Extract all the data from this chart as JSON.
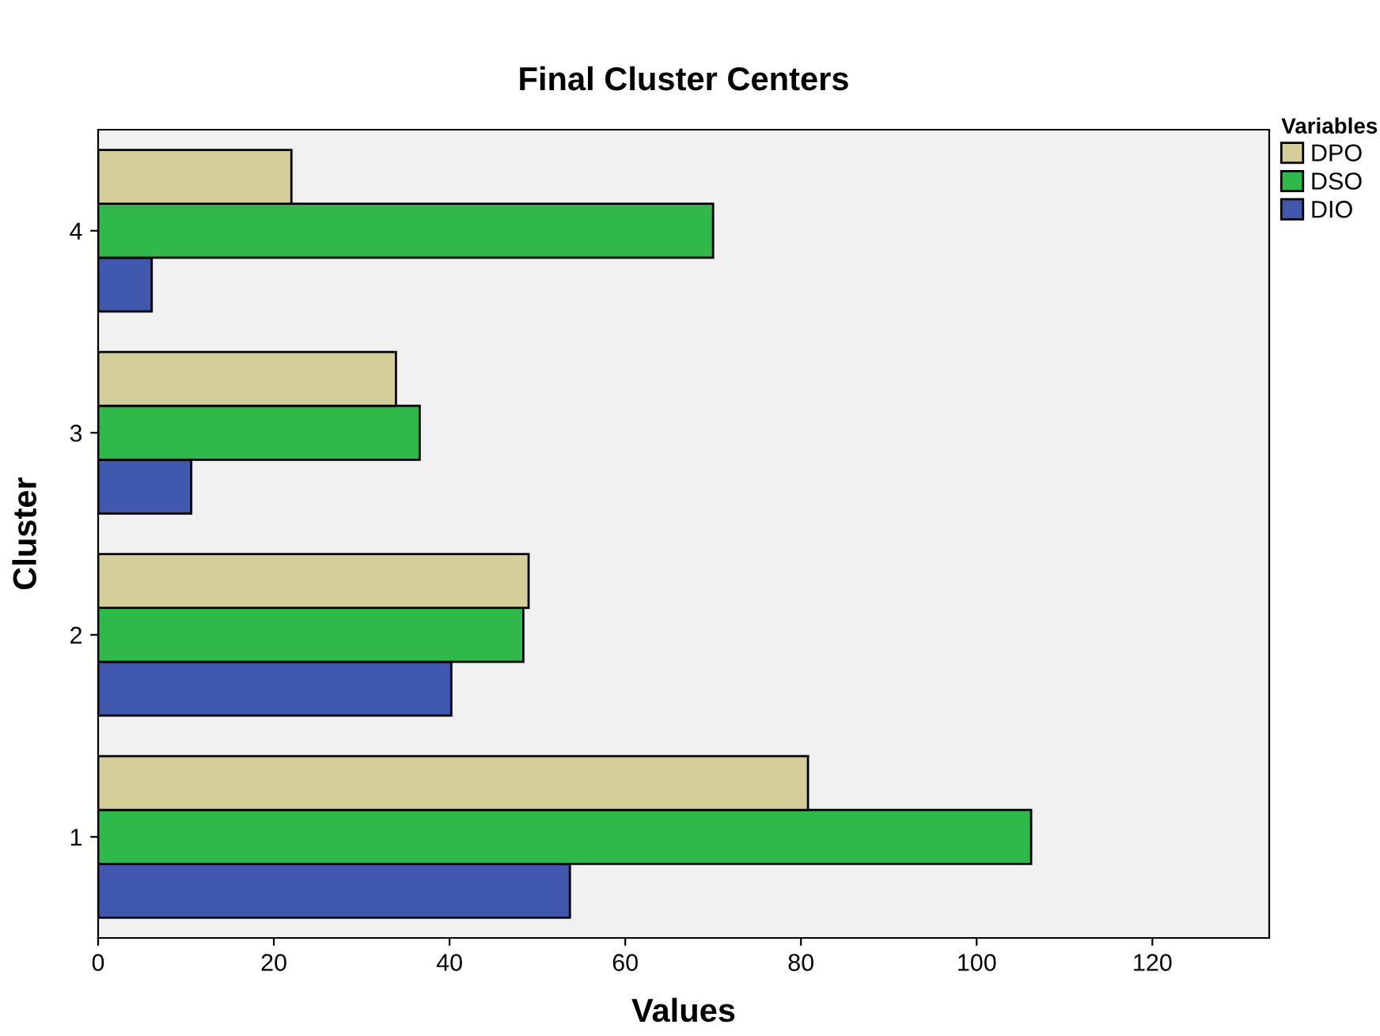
{
  "chart_data": {
    "type": "bar",
    "orientation": "horizontal",
    "title": "Final Cluster Centers",
    "xlabel": "Values",
    "ylabel": "Cluster",
    "legend_title": "Variables",
    "legend": "top right",
    "categories": [
      "4",
      "3",
      "2",
      "1"
    ],
    "series": [
      {
        "name": "DIO",
        "color": "#3f58ad",
        "values": [
          6.1,
          10.6,
          40.2,
          53.7
        ]
      },
      {
        "name": "DSO",
        "color": "#30b94a",
        "values": [
          70.0,
          36.6,
          48.4,
          106.2
        ]
      },
      {
        "name": "DPO",
        "color": "#d4cf98",
        "values": [
          22.0,
          33.9,
          49.0,
          80.8
        ]
      }
    ],
    "xlim": [
      0,
      133.3
    ],
    "xticks": [
      0,
      20,
      40,
      60,
      80,
      100,
      120
    ],
    "grid": false
  }
}
